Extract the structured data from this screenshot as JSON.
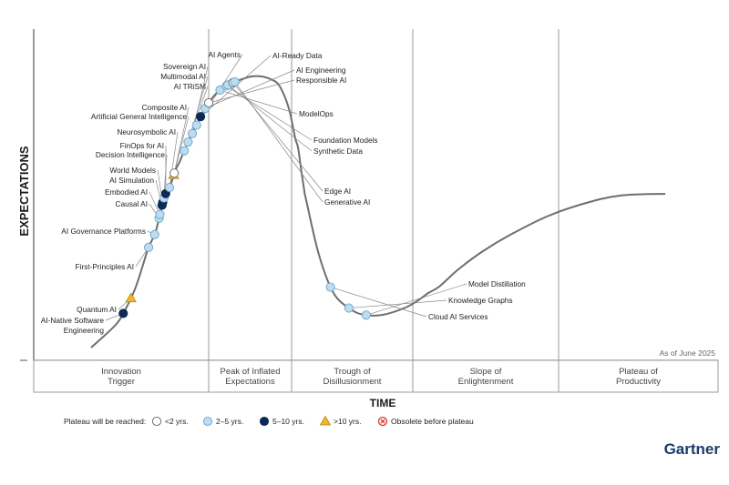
{
  "chart_data": {
    "type": "scatter",
    "title": "",
    "xlabel": "TIME",
    "ylabel": "EXPECTATIONS",
    "note": "As of June 2025",
    "brand": "Gartner",
    "phases": [
      [
        "Innovation",
        "Trigger"
      ],
      [
        "Peak of Inflated",
        "Expectations"
      ],
      [
        "Trough of",
        "Disillusionment"
      ],
      [
        "Slope of",
        "Enlightenment"
      ],
      [
        "Plateau of",
        "Productivity"
      ]
    ],
    "legend": {
      "title": "Plateau will be reached:",
      "items": [
        {
          "key": "lt2",
          "label": "<2 yrs."
        },
        {
          "key": "2to5",
          "label": "2–5 yrs."
        },
        {
          "key": "5to10",
          "label": "5–10 yrs."
        },
        {
          "key": "gt10",
          "label": ">10 yrs."
        },
        {
          "key": "obsolete",
          "label": "Obsolete before plateau"
        }
      ]
    },
    "category_colors": {
      "lt2": "#ffffff",
      "2to5": "#bcdcf0",
      "5to10": "#0b2a55",
      "gt10": "#f2b632",
      "obsolete": "#d93838"
    },
    "innovations": [
      {
        "name": "AI-Native Software Engineering",
        "position": 0.05,
        "plateau": "5to10"
      },
      {
        "name": "Quantum AI",
        "position": 0.068,
        "plateau": "gt10"
      },
      {
        "name": "First-Principles AI",
        "position": 0.125,
        "plateau": "2to5"
      },
      {
        "name": "AI Governance Platforms",
        "position": 0.14,
        "plateau": "2to5"
      },
      {
        "name": "Causal AI",
        "position": 0.158,
        "plateau": "2to5"
      },
      {
        "name": "Embodied AI",
        "position": 0.162,
        "plateau": "2to5"
      },
      {
        "name": "AI Simulation",
        "position": 0.172,
        "plateau": "5to10"
      },
      {
        "name": "World Models",
        "position": 0.175,
        "plateau": "5to10"
      },
      {
        "name": "Decision Intelligence",
        "position": 0.18,
        "plateau": "2to5"
      },
      {
        "name": "FinOps for AI",
        "position": 0.185,
        "plateau": "5to10"
      },
      {
        "name": "Neurosymbolic AI",
        "position": 0.193,
        "plateau": "2to5"
      },
      {
        "name": "Artificial General Intelligence",
        "position": 0.207,
        "plateau": "gt10"
      },
      {
        "name": "Composite AI",
        "position": 0.209,
        "plateau": "lt2"
      },
      {
        "name": "AI TRiSM",
        "position": 0.235,
        "plateau": "2to5"
      },
      {
        "name": "Multimodal AI",
        "position": 0.245,
        "plateau": "2to5"
      },
      {
        "name": "Sovereign AI",
        "position": 0.255,
        "plateau": "2to5"
      },
      {
        "name": "AI Agents",
        "position": 0.265,
        "plateau": "2to5"
      },
      {
        "name": "AI-Ready Data",
        "position": 0.275,
        "plateau": "5to10"
      },
      {
        "name": "AI Engineering",
        "position": 0.285,
        "plateau": "2to5"
      },
      {
        "name": "Responsible AI",
        "position": 0.292,
        "plateau": "lt2"
      },
      {
        "name": "ModelOps",
        "position": 0.31,
        "plateau": "2to5"
      },
      {
        "name": "Foundation Models",
        "position": 0.318,
        "plateau": "2to5"
      },
      {
        "name": "Synthetic Data",
        "position": 0.32,
        "plateau": "2to5"
      },
      {
        "name": "Edge AI",
        "position": 0.326,
        "plateau": "lt2"
      },
      {
        "name": "Generative AI",
        "position": 0.328,
        "plateau": "2to5"
      },
      {
        "name": "Cloud AI Services",
        "position": 0.6,
        "plateau": "2to5"
      },
      {
        "name": "Knowledge Graphs",
        "position": 0.63,
        "plateau": "2to5"
      },
      {
        "name": "Model Distillation",
        "position": 0.65,
        "plateau": "2to5"
      }
    ]
  }
}
